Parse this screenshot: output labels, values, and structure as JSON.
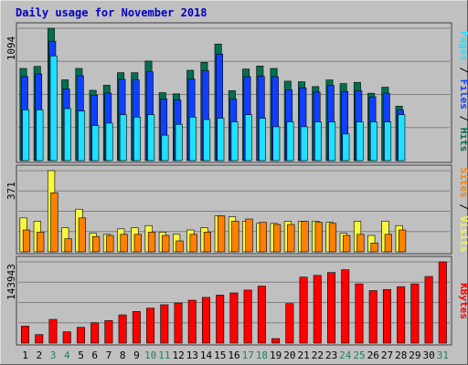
{
  "title": "Daily usage for November 2018",
  "colors": {
    "background": "#c0c0c0",
    "title": "#0000c0",
    "hits": "#007050",
    "files": "#1040ff",
    "pages": "#20e0ff",
    "visits": "#f8f840",
    "sites": "#ff8000",
    "kbytes": "#ff0000",
    "weekend_label": "#208060",
    "day_label": "#000000",
    "panel_bg": "#c0c0c0",
    "grid": "#808080"
  },
  "right_labels": {
    "pages": "Pages",
    "files": "Files",
    "hits": "Hits",
    "sep": " / ",
    "sites": "Sites",
    "visits": "Visits",
    "kbytes": "KBytes"
  },
  "chart_data": {
    "type": "bar",
    "title": "Daily usage for November 2018",
    "categories": [
      "1",
      "2",
      "3",
      "4",
      "5",
      "6",
      "7",
      "8",
      "9",
      "10",
      "11",
      "12",
      "13",
      "14",
      "15",
      "16",
      "17",
      "18",
      "19",
      "20",
      "21",
      "22",
      "23",
      "24",
      "25",
      "26",
      "27",
      "28",
      "29",
      "30",
      "31"
    ],
    "weekend_days": [
      "3",
      "4",
      "10",
      "11",
      "17",
      "18",
      "24",
      "25",
      "31"
    ],
    "panels": [
      {
        "name": "hits-files-pages",
        "max_label": "1094",
        "ymax": 1094,
        "series": [
          {
            "name": "Hits",
            "values": [
              762,
              779,
              1094,
              668,
              762,
              581,
              623,
              727,
              727,
              823,
              562,
              552,
              747,
              812,
              964,
              578,
              757,
              782,
              762,
              657,
              652,
              612,
              667,
              637,
              647,
              557,
              607,
              450,
              0,
              0,
              0
            ]
          },
          {
            "name": "Files",
            "values": [
              695,
              717,
              987,
              593,
              701,
              541,
              558,
              672,
              667,
              734,
              510,
              501,
              675,
              743,
              881,
              509,
              694,
              698,
              694,
              584,
              602,
              566,
              622,
              572,
              577,
              527,
              557,
              417,
              0,
              0,
              0
            ]
          },
          {
            "name": "Pages",
            "values": [
              420,
              420,
              865,
              430,
              410,
              290,
              310,
              380,
              360,
              380,
              210,
              300,
              360,
              340,
              350,
              320,
              380,
              350,
              280,
              320,
              280,
              320,
              320,
              220,
              320,
              320,
              320,
              380,
              0,
              0,
              0
            ]
          }
        ]
      },
      {
        "name": "visits-sites",
        "max_label": "371",
        "ymax": 371,
        "series": [
          {
            "name": "Visits",
            "values": [
              155,
              140,
              371,
              110,
              195,
              85,
              80,
              105,
              110,
              120,
              90,
              80,
              100,
              110,
              165,
              160,
              140,
              130,
              130,
              140,
              140,
              140,
              135,
              85,
              140,
              75,
              140,
              120,
              0,
              0,
              0
            ]
          },
          {
            "name": "Sites",
            "values": [
              100,
              90,
              270,
              60,
              155,
              70,
              75,
              80,
              80,
              90,
              75,
              50,
              80,
              90,
              165,
              140,
              150,
              135,
              125,
              125,
              140,
              135,
              130,
              75,
              80,
              40,
              80,
              100,
              0,
              0,
              0
            ]
          }
        ]
      },
      {
        "name": "kbytes",
        "max_label": "143943",
        "ymax": 143943,
        "series": [
          {
            "name": "KBytes",
            "values": [
              30000,
              15000,
              42000,
              20000,
              28000,
              36000,
              40000,
              50000,
              56000,
              62000,
              68000,
              71000,
              76000,
              81000,
              85000,
              89000,
              94000,
              101000,
              8000,
              70000,
              117000,
              120000,
              125000,
              130000,
              105000,
              93000,
              95000,
              100000,
              105000,
              118000,
              143943
            ]
          }
        ]
      }
    ]
  }
}
